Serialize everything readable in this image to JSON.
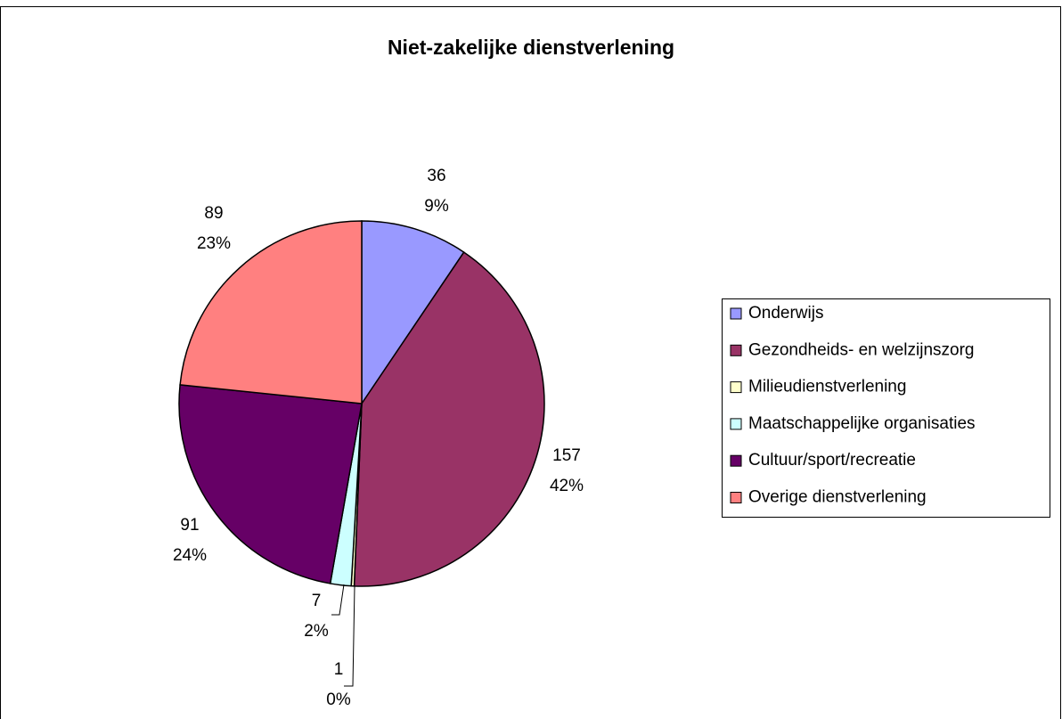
{
  "chart_data": {
    "type": "pie",
    "title": "Niet-zakelijke dienstverlening",
    "categories": [
      "Onderwijs",
      "Gezondheids- en welzijnszorg",
      "Milieudienstverlening",
      "Maatschappelijke organisaties",
      "Cultuur/sport/recreatie",
      "Overige dienstverlening"
    ],
    "values": [
      36,
      157,
      1,
      7,
      91,
      89
    ],
    "percent_labels": [
      "9%",
      "42%",
      "0%",
      "2%",
      "24%",
      "23%"
    ],
    "colors": [
      "#9999ff",
      "#993366",
      "#ffffcc",
      "#ccffff",
      "#660066",
      "#ff8080"
    ],
    "legend": "right"
  }
}
